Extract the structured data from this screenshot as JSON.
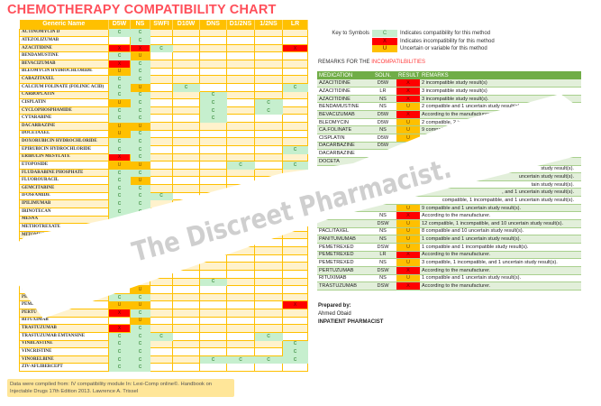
{
  "title": "CHEMOTHERAPY COMPATIBILITY CHART",
  "colors": {
    "title": "#ff4f5a",
    "header": "#ffc000",
    "compatible": "#c6efce",
    "incompatible": "#ff0000",
    "uncertain": "#ffc000",
    "remarks_header": "#70ad47"
  },
  "chart": {
    "headers": [
      "Generic Name",
      "D5W",
      "NS",
      "SWFI",
      "D10W",
      "DNS",
      "D1/2NS",
      "1/2NS",
      "LR"
    ],
    "rows": [
      [
        "ACTINOMYCIN D",
        "C",
        "C",
        "",
        "",
        "",
        "",
        "",
        ""
      ],
      [
        "ATEZOLIZUMAB",
        "",
        "C",
        "",
        "",
        "",
        "",
        "",
        ""
      ],
      [
        "AZACITIDINE",
        "X",
        "X",
        "C",
        "",
        "",
        "",
        "",
        "X"
      ],
      [
        "BENDAMUSTINE",
        "C",
        "U",
        "",
        "",
        "",
        "",
        "",
        ""
      ],
      [
        "BEVACIZUMAB",
        "X",
        "C",
        "",
        "",
        "",
        "",
        "",
        ""
      ],
      [
        "BLEOMYCIN HYDROCHLORIDE",
        "U",
        "C",
        "",
        "",
        "",
        "",
        "",
        ""
      ],
      [
        "CABAZITAXEL",
        "C",
        "C",
        "",
        "",
        "",
        "",
        "",
        ""
      ],
      [
        "CALCIUM FOLINATE (FOLINIC ACID)",
        "C",
        "U",
        "",
        "C",
        "",
        "",
        "",
        "C"
      ],
      [
        "CARBOPLATIN",
        "C",
        "C",
        "",
        "",
        "C",
        "",
        "",
        ""
      ],
      [
        "CISPLATIN",
        "U",
        "C",
        "",
        "",
        "C",
        "",
        "C",
        ""
      ],
      [
        "CYCLOPHOSPHAMIDE",
        "C",
        "C",
        "",
        "",
        "C",
        "",
        "C",
        ""
      ],
      [
        "CYTARABINE",
        "C",
        "C",
        "",
        "",
        "C",
        "",
        "",
        ""
      ],
      [
        "DACARBAZINE",
        "U",
        "U",
        "",
        "",
        "",
        "",
        "",
        ""
      ],
      [
        "DOCETAXEL",
        "U",
        "C",
        "",
        "",
        "",
        "",
        "",
        ""
      ],
      [
        "DOXORUBICIN HYDROCHLORIDE",
        "C",
        "C",
        "",
        "",
        "",
        "",
        "",
        ""
      ],
      [
        "EPIRUBICIN HYDROCHLORIDE",
        "C",
        "C",
        "",
        "",
        "",
        "",
        "",
        "C"
      ],
      [
        "ERIBULIN MESYLATE",
        "X",
        "C",
        "",
        "",
        "",
        "",
        "",
        ""
      ],
      [
        "ETOPOSIDE",
        "U",
        "U",
        "",
        "",
        "",
        "C",
        "",
        "C"
      ],
      [
        "FLUDARABINE PHOSPHATE",
        "C",
        "C",
        "",
        "",
        "",
        "",
        "",
        ""
      ],
      [
        "FLUOROURACIL",
        "C",
        "U",
        "",
        "",
        "",
        "",
        "",
        ""
      ],
      [
        "GEMCITABINE",
        "C",
        "C",
        "",
        "",
        "",
        "",
        "",
        ""
      ],
      [
        "IFOSFAMIDE",
        "C",
        "C",
        "C",
        "",
        "",
        "",
        "",
        ""
      ],
      [
        "IPILIMUMAB",
        "C",
        "C",
        "",
        "",
        "",
        "",
        "",
        ""
      ],
      [
        "IRINOTECAN",
        "C",
        "C",
        "",
        "",
        "",
        "",
        "",
        ""
      ],
      [
        "MESNA",
        "C",
        "",
        "",
        "",
        "",
        "",
        "",
        ""
      ],
      [
        "METHOTREXATE",
        "",
        "",
        "",
        "",
        "",
        "",
        "",
        ""
      ],
      [
        "MITOMYCIN-C",
        "",
        "",
        "",
        "",
        "",
        "",
        "",
        ""
      ],
      [
        "MITOXAN",
        "",
        "",
        "",
        "",
        "",
        "",
        "",
        ""
      ],
      [
        "",
        "",
        "",
        "",
        "",
        "",
        "",
        "",
        ""
      ],
      [
        "C",
        "",
        "",
        "",
        "",
        "",
        "",
        "",
        ""
      ],
      [
        "O",
        "",
        "",
        "",
        "",
        "",
        "",
        "",
        ""
      ],
      [
        "OX",
        "",
        "",
        "",
        "",
        "",
        "",
        "",
        ""
      ],
      [
        "PAC",
        "",
        "",
        "",
        "",
        "C",
        "",
        "",
        ""
      ],
      [
        "PAN",
        "",
        "U",
        "",
        "",
        "",
        "",
        "",
        ""
      ],
      [
        "PEME",
        "C",
        "C",
        "",
        "",
        "",
        "",
        "",
        ""
      ],
      [
        "PEMET",
        "U",
        "U",
        "",
        "",
        "",
        "",
        "",
        "X"
      ],
      [
        "PERTU",
        "X",
        "C",
        "",
        "",
        "",
        "",
        "",
        ""
      ],
      [
        "RITUXIMAB",
        "",
        "U",
        "",
        "",
        "",
        "",
        "",
        ""
      ],
      [
        "TRASTUZUMAB",
        "X",
        "C",
        "",
        "",
        "",
        "",
        "",
        ""
      ],
      [
        "TRASTUZUMAB EMTANSINE",
        "C",
        "C",
        "C",
        "",
        "",
        "",
        "C",
        ""
      ],
      [
        "VINBLASTINE",
        "C",
        "C",
        "",
        "",
        "",
        "",
        "",
        "C"
      ],
      [
        "VINCRISTINE",
        "C",
        "C",
        "",
        "",
        "",
        "",
        "",
        "C"
      ],
      [
        "VINORELBINE",
        "C",
        "C",
        "",
        "",
        "C",
        "C",
        "C",
        "C"
      ],
      [
        "ZIV-AFLIBERCEPT",
        "C",
        "C",
        "",
        "",
        "",
        "",
        "",
        ""
      ]
    ]
  },
  "key": {
    "label": "Key to Symbols",
    "items": [
      {
        "symbol": "C",
        "class": "C",
        "text": "Indicates compatibility for this method"
      },
      {
        "symbol": "X",
        "class": "X",
        "text": "Indicates incompatibility for this method"
      },
      {
        "symbol": "U",
        "class": "U",
        "text": "Uncertain or variable for this method"
      }
    ]
  },
  "remarks_title": {
    "prefix": "REMARKS FOR THE ",
    "highlight": "INCOMPATILBILITIES"
  },
  "remarks": {
    "headers": [
      "MEDICATION",
      "SOLN.",
      "RESULT",
      "REMARKS"
    ],
    "rows": [
      [
        "AZACITIDINE",
        "D5W",
        "X",
        "2 incompatible study result(s)"
      ],
      [
        "AZACITIDINE",
        "LR",
        "X",
        "3 incompatible study result(s)"
      ],
      [
        "AZACITIDINE",
        "NS",
        "X",
        "3 incompatible study result(s)."
      ],
      [
        "BENDAMUSTINE",
        "NS",
        "U",
        "2 compatible and 1 uncertain study result(s)."
      ],
      [
        "BEVACIZUMAB",
        "D5W",
        "X",
        "According to the manufacturer."
      ],
      [
        "BLEOMYCIN",
        "D5W",
        "U",
        "2 compatible, 2 inco"
      ],
      [
        "CA.FOLINATE",
        "NS",
        "U",
        "9 compatib"
      ],
      [
        "CISPLATIN",
        "D5W",
        "U",
        ""
      ],
      [
        "DACARBAZINE",
        "D5W",
        "",
        ""
      ],
      [
        "DACARBAZINE",
        "",
        "",
        ""
      ],
      [
        "DOCETA",
        "",
        "",
        ""
      ],
      [
        "",
        "",
        "",
        "study result(s)."
      ],
      [
        "",
        "",
        "",
        "uncertain study result(s)."
      ],
      [
        "",
        "",
        "",
        "tain study result(s)."
      ],
      [
        "",
        "",
        "",
        ", and 1 uncertain study result(s)."
      ],
      [
        "",
        "",
        "",
        "compatible, 1 incompatible, and 1 uncertain study result(s)."
      ],
      [
        "",
        "",
        "U",
        "9 compatible and 1 uncertain study result(s)."
      ],
      [
        "",
        "NS",
        "X",
        "According to the manufacturer."
      ],
      [
        "",
        "DSW",
        "U",
        "12 compatible, 1 incompatible, and 10 uncertain study result(s)."
      ],
      [
        "PACLITAXEL",
        "NS",
        "U",
        "8 compatible and 10 uncertain study result(s)."
      ],
      [
        "PANITUMUMAB",
        "NS",
        "U",
        "1 compatible and 1 uncertain study result(s)."
      ],
      [
        "PEMETREXED",
        "DSW",
        "U",
        "1 compatible and 1 incompatible study result(s)."
      ],
      [
        "PEMETREXED",
        "LR",
        "X",
        "According to the manufacturer."
      ],
      [
        "PEMETREXED",
        "NS",
        "U",
        "3 compatible, 1 incompatible, and 1 uncertain study result(s)."
      ],
      [
        "PERTUZUMAB",
        "DSW",
        "X",
        "According to the manufacturer."
      ],
      [
        "RITUXIMAB",
        "NS",
        "U",
        "1 compatible and 1 uncertain study result(s)."
      ],
      [
        "TRASTUZUMAB",
        "DSW",
        "X",
        "According to the manufacturer."
      ]
    ]
  },
  "prepared": {
    "label": "Prepared by:",
    "name": "Ahmed Obaid",
    "role": "INPATIENT PHARMACIST"
  },
  "note": "Data were compiled from: IV compatibility module In: Lexi-Comp online©. Handbook on Injectable Drugs 17th Edition 2013. Lawrence A. Trissel",
  "watermark": "The Discreet Pharmacist."
}
